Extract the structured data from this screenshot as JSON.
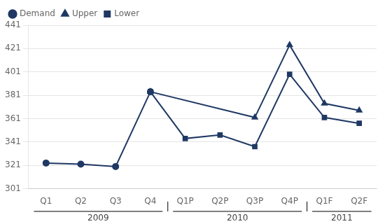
{
  "chart_data": {
    "type": "line",
    "categories": [
      "Q1",
      "Q2",
      "Q3",
      "Q4",
      "Q1P",
      "Q2P",
      "Q3P",
      "Q4P",
      "Q1F",
      "Q2F"
    ],
    "series": [
      {
        "name": "Demand",
        "color": "#1F3864",
        "marker": "circle",
        "x": [
          "Q1",
          "Q2",
          "Q3",
          "Q4"
        ],
        "values": [
          323,
          322,
          320,
          384
        ]
      },
      {
        "name": "Upper",
        "color": "#1F3864",
        "marker": "triangle",
        "x": [
          "Q4",
          "Q3P",
          "Q4P",
          "Q1F",
          "Q2F"
        ],
        "values": [
          384,
          362,
          424,
          374,
          368
        ]
      },
      {
        "name": "Lower",
        "color": "#1F3864",
        "marker": "square",
        "x": [
          "Q4",
          "Q1P",
          "Q2P",
          "Q3P",
          "Q4P",
          "Q1F",
          "Q2F"
        ],
        "values": [
          384,
          344,
          347,
          337,
          399,
          362,
          357
        ]
      }
    ],
    "ylim": [
      301,
      441
    ],
    "yticks": [
      301,
      321,
      341,
      361,
      381,
      401,
      421,
      441
    ],
    "grid": "y",
    "legend": "upper left",
    "annotations": [
      {
        "text": "2009",
        "from": "Q1",
        "to": "Q4"
      },
      {
        "text": "2010",
        "from": "Q1P",
        "to": "Q4P"
      },
      {
        "text": "2011",
        "from": "Q1F",
        "to": "Q2F"
      }
    ]
  }
}
